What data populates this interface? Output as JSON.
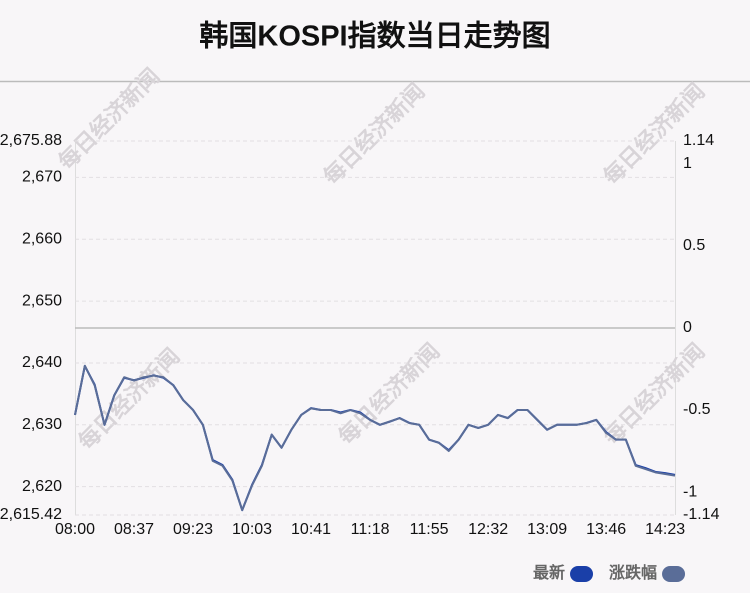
{
  "chart_data": {
    "type": "line",
    "title": "韩国KOSPI指数当日走势图",
    "watermark": "每日经济新闻",
    "categories": [
      "08:00",
      null,
      null,
      null,
      null,
      null,
      "08:37",
      null,
      null,
      null,
      null,
      null,
      "09:23",
      null,
      null,
      null,
      null,
      null,
      "10:03",
      null,
      null,
      null,
      null,
      null,
      "10:41",
      null,
      null,
      null,
      null,
      null,
      "11:18",
      null,
      null,
      null,
      null,
      null,
      "11:55",
      null,
      null,
      null,
      null,
      null,
      "12:32",
      null,
      null,
      null,
      null,
      null,
      "13:09",
      null,
      null,
      null,
      null,
      null,
      "13:46",
      null,
      null,
      null,
      null,
      null,
      "14:23",
      null
    ],
    "series": [
      {
        "name": "最新",
        "color": "#1a3fa8",
        "values": [
          2631.6,
          2639.5,
          2636.5,
          2630.0,
          2634.8,
          2637.6,
          2637.2,
          2637.6,
          2638.0,
          2637.6,
          2636.4,
          2634.0,
          2632.4,
          2630.0,
          2624.3,
          2623.5,
          2621.1,
          2616.2,
          2620.3,
          2623.5,
          2628.4,
          2626.3,
          2629.2,
          2631.6,
          2632.7,
          2632.4,
          2632.4,
          2632.0,
          2632.4,
          2632.0,
          2630.8,
          2630.0,
          2630.5,
          2631.1,
          2630.3,
          2630.0,
          2627.6,
          2627.1,
          2625.9,
          2627.6,
          2630.0,
          2629.5,
          2630.0,
          2631.6,
          2631.1,
          2632.4,
          2632.4,
          2630.8,
          2629.2,
          2630.0,
          2630.0,
          2630.0,
          2630.3,
          2630.8,
          2628.8,
          2627.6,
          2627.6,
          2623.5,
          2623.0,
          2622.4,
          2622.2,
          2621.9
        ]
      },
      {
        "name": "涨跌幅",
        "color": "#5a6d98",
        "axis": "y2",
        "values": [
          -0.53,
          -0.23,
          -0.35,
          -0.59,
          -0.41,
          -0.3,
          -0.32,
          -0.3,
          -0.29,
          -0.3,
          -0.35,
          -0.44,
          -0.5,
          -0.59,
          -0.81,
          -0.84,
          -0.93,
          -1.11,
          -0.96,
          -0.84,
          -0.65,
          -0.73,
          -0.62,
          -0.53,
          -0.49,
          -0.5,
          -0.5,
          -0.52,
          -0.5,
          -0.52,
          -0.56,
          -0.59,
          -0.57,
          -0.55,
          -0.58,
          -0.59,
          -0.68,
          -0.7,
          -0.75,
          -0.68,
          -0.59,
          -0.61,
          -0.59,
          -0.53,
          -0.55,
          -0.5,
          -0.5,
          -0.56,
          -0.62,
          -0.59,
          -0.59,
          -0.59,
          -0.58,
          -0.56,
          -0.64,
          -0.68,
          -0.68,
          -0.84,
          -0.86,
          -0.88,
          -0.89,
          -0.9
        ]
      }
    ],
    "ylim": [
      2615.42,
      2675.88
    ],
    "yticks": [
      {
        "value": 2615.42,
        "label": "2,615.42"
      },
      {
        "value": 2620,
        "label": "2,620"
      },
      {
        "value": 2630,
        "label": "2,630"
      },
      {
        "value": 2640,
        "label": "2,640"
      },
      {
        "value": 2650,
        "label": "2,650"
      },
      {
        "value": 2660,
        "label": "2,660"
      },
      {
        "value": 2670,
        "label": "2,670"
      },
      {
        "value": 2675.88,
        "label": "2,675.88"
      }
    ],
    "y2lim": [
      -1.14,
      1.14
    ],
    "y2ticks": [
      -1.14,
      -1,
      -0.5,
      0,
      0.5,
      1,
      1.14
    ],
    "grid": true,
    "legend": "bottom-right"
  }
}
